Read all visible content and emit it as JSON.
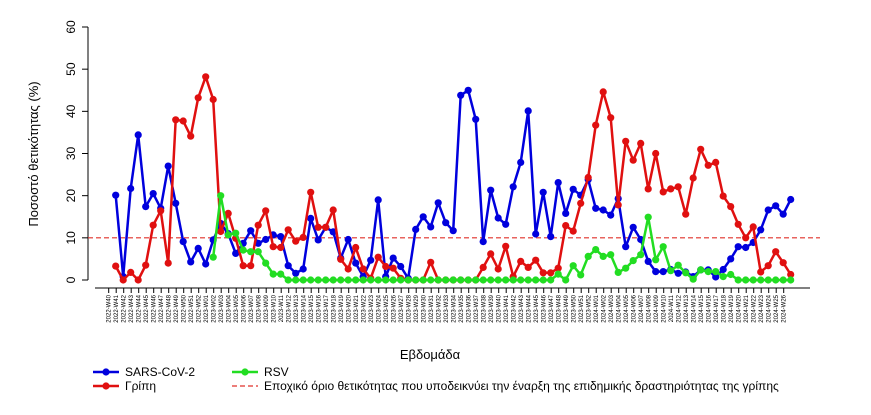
{
  "chart_data": {
    "type": "line",
    "title": "",
    "xlabel": "Εβδομάδα",
    "ylabel": "Ποσοστό θετικότητας (%)",
    "ylim": [
      0,
      60
    ],
    "yticks": [
      0,
      10,
      20,
      30,
      40,
      50,
      60
    ],
    "grid": false,
    "threshold": {
      "value": 10,
      "label": "Εποχικό όριο θετικότητας που υποδεικνύει την έναρξη της επιδημικής δραστηριότητας της γρίπης",
      "color": "#e0302a"
    },
    "x": [
      "2022-W40",
      "2022-W41",
      "2022-W42",
      "2022-W43",
      "2022-W44",
      "2022-W45",
      "2022-W46",
      "2022-W47",
      "2022-W48",
      "2022-W49",
      "2022-W50",
      "2022-W51",
      "2022-W52",
      "2023-W01",
      "2023-W02",
      "2023-W03",
      "2023-W04",
      "2023-W05",
      "2023-W06",
      "2023-W07",
      "2023-W08",
      "2023-W09",
      "2023-W10",
      "2023-W11",
      "2023-W12",
      "2023-W13",
      "2023-W14",
      "2023-W15",
      "2023-W16",
      "2023-W17",
      "2023-W18",
      "2023-W19",
      "2023-W20",
      "2023-W21",
      "2023-W22",
      "2023-W23",
      "2023-W24",
      "2023-W25",
      "2023-W26",
      "2023-W27",
      "2023-W28",
      "2023-W29",
      "2023-W30",
      "2023-W31",
      "2023-W32",
      "2023-W33",
      "2023-W34",
      "2023-W35",
      "2023-W36",
      "2023-W37",
      "2023-W38",
      "2023-W39",
      "2023-W40",
      "2023-W41",
      "2023-W42",
      "2023-W43",
      "2023-W44",
      "2023-W45",
      "2023-W46",
      "2023-W47",
      "2023-W48",
      "2023-W49",
      "2023-W50",
      "2023-W51",
      "2023-W52",
      "2024-W01",
      "2024-W02",
      "2024-W03",
      "2024-W04",
      "2024-W05",
      "2024-W06",
      "2024-W07",
      "2024-W08",
      "2024-W09",
      "2024-W10",
      "2024-W11",
      "2024-W12",
      "2024-W13",
      "2024-W14",
      "2024-W15",
      "2024-W16",
      "2024-W17",
      "2024-W18",
      "2024-W19",
      "2024-W20",
      "2024-W21",
      "2024-W22",
      "2024-W23",
      "2024-W24",
      "2024-W25",
      "2024-W26"
    ],
    "series": [
      {
        "name": "SARS-CoV-2",
        "color": "#0000dd",
        "values": [
          20.1,
          0.8,
          21.7,
          34.4,
          17.4,
          20.5,
          17,
          27,
          18.2,
          9.1,
          4.3,
          7.5,
          3.8,
          9.5,
          13.4,
          11,
          6.3,
          8.7,
          11.7,
          8.7,
          9.6,
          10.7,
          10.3,
          3.4,
          1.6,
          2.6,
          14.6,
          9.5,
          12.5,
          11.4,
          5.2,
          9.6,
          4,
          0.8,
          4.7,
          19,
          0.8,
          5.2,
          3.2,
          0.4,
          12,
          15,
          12.6,
          18.3,
          13.6,
          11.7,
          43.8,
          45,
          38.1,
          9.1,
          21.3,
          14.7,
          13.2,
          22.1,
          27.9,
          40.1,
          10.9,
          20.8,
          10.3,
          23.1,
          15.8,
          21.5,
          20.1,
          23.8,
          17,
          16.6,
          15.4,
          19.3,
          7.9,
          12.5,
          9.6,
          4.4,
          2,
          2,
          2.5,
          1.6,
          1.9,
          0.8,
          2.4,
          2.4,
          0.7,
          2.5,
          5,
          7.9,
          7.7,
          8.9,
          11.9,
          16.6,
          17.6,
          15.6,
          19.1
        ]
      },
      {
        "name": "Γρίπη",
        "color": "#e01010",
        "values": [
          3.3,
          0,
          1.8,
          0,
          3.5,
          13,
          16.4,
          4,
          38,
          37.7,
          34.1,
          43.2,
          48.2,
          42.8,
          11.5,
          15.8,
          9.9,
          3.4,
          3.4,
          13,
          16.4,
          7.9,
          7.7,
          11.9,
          9.2,
          10.1,
          20.8,
          12.5,
          12.5,
          16.6,
          4.9,
          2.6,
          7.7,
          2.6,
          0.4,
          5.4,
          3.2,
          2.8,
          0.4,
          0,
          0,
          0,
          4.2,
          0,
          0,
          0,
          0,
          0,
          0,
          3,
          6.2,
          2.6,
          8,
          0.8,
          4.4,
          3,
          4.7,
          1.7,
          1.7,
          2.8,
          12.9,
          11.6,
          18.2,
          24.3,
          36.7,
          44.6,
          38.5,
          17.8,
          32.9,
          28.4,
          32.4,
          21.6,
          30,
          20.9,
          21.6,
          22.1,
          15.6,
          24.2,
          31,
          27.2,
          27.9,
          19.9,
          17.4,
          13.2,
          10,
          12.6,
          1.9,
          3.4,
          6.7,
          4.1,
          1.3
        ]
      },
      {
        "name": "RSV",
        "color": "#22dd22",
        "values": [
          null,
          null,
          null,
          null,
          null,
          null,
          null,
          null,
          null,
          null,
          null,
          null,
          null,
          5.4,
          20,
          10.7,
          11.1,
          7.1,
          6.7,
          6.7,
          4,
          1.4,
          1.4,
          0,
          0,
          0,
          0,
          0,
          0,
          0,
          0,
          0,
          0,
          0,
          0,
          0,
          0,
          0,
          0,
          0,
          0,
          0,
          0,
          0,
          0,
          0,
          0,
          0,
          0,
          0,
          0,
          0,
          0,
          0,
          0,
          0,
          0,
          0,
          0,
          1.4,
          0,
          3.4,
          1.2,
          5.6,
          7.2,
          5.6,
          6,
          1.8,
          2.8,
          4.6,
          6,
          14.9,
          4.8,
          7.9,
          2.2,
          3.5,
          1.7,
          0.2,
          2.4,
          2,
          2,
          0.8,
          1.3,
          0,
          0,
          0,
          0,
          0,
          0,
          0,
          0
        ]
      }
    ],
    "legend": {
      "placement": "bottom-left",
      "entries": [
        "SARS-CoV-2",
        "RSV",
        "Γρίπη",
        "Εποχικό όριο θετικότητας που υποδεικνύει την έναρξη της επιδημικής δραστηριότητας της γρίπης"
      ]
    }
  }
}
